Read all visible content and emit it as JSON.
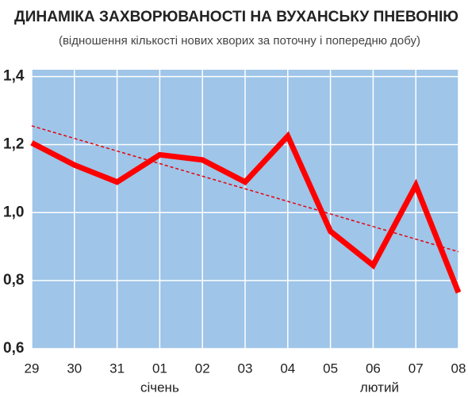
{
  "chart_data": {
    "type": "line",
    "title": "ДИНАМІКА ЗАХВОРЮВАНОСТІ НА ВУХАНСЬКУ ПНЕВОНІЮ",
    "subtitle": "(відношення кількості нових хворих за поточну і попередню добу)",
    "categories": [
      "29",
      "30",
      "31",
      "01",
      "02",
      "03",
      "04",
      "05",
      "06",
      "07",
      "08"
    ],
    "series": [
      {
        "color": "#ff0000",
        "values": [
          1.205,
          1.14,
          1.09,
          1.17,
          1.155,
          1.09,
          1.225,
          0.945,
          0.845,
          1.08,
          0.765
        ]
      }
    ],
    "trend": {
      "color": "#e8000b",
      "values": [
        1.255,
        0.885
      ]
    },
    "annotations": [
      "січень",
      "лютий"
    ],
    "ylim": [
      0.6,
      1.42
    ],
    "yticks": [
      {
        "value": 0.6,
        "label": "0,6"
      },
      {
        "value": 0.8,
        "label": "0,8"
      },
      {
        "value": 1.0,
        "label": "1,0"
      },
      {
        "value": 1.2,
        "label": "1,2"
      },
      {
        "value": 1.4,
        "label": "1,4"
      }
    ],
    "grid": true,
    "background": "#9fc5e8"
  }
}
